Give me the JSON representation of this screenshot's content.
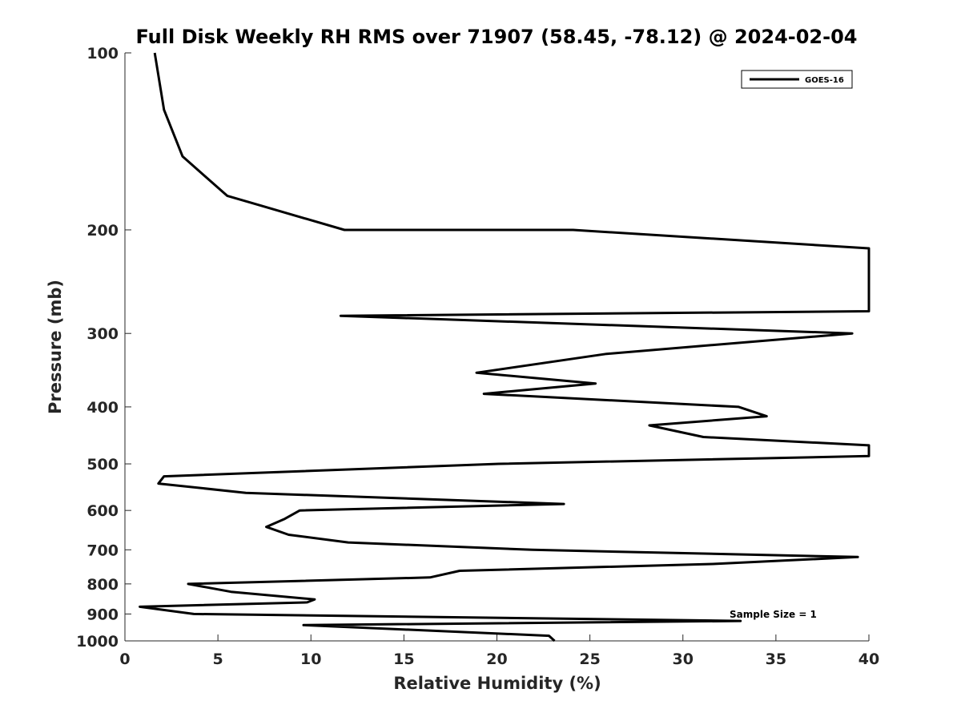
{
  "chart_data": {
    "type": "line",
    "title": "Full Disk Weekly RH RMS over 71907 (58.45, -78.12) @ 2024-02-04",
    "xlabel": "Relative Humidity (%)",
    "ylabel": "Pressure (mb)",
    "xlim": [
      0,
      40
    ],
    "ylim": [
      100,
      1000
    ],
    "y_scale": "log",
    "y_reversed": true,
    "grid": false,
    "x_ticks": [
      0,
      5,
      10,
      15,
      20,
      25,
      30,
      35,
      40
    ],
    "y_ticks": [
      100,
      200,
      300,
      400,
      500,
      600,
      700,
      800,
      900,
      1000
    ],
    "legend": {
      "position": "top-right",
      "entries": [
        "GOES-16"
      ]
    },
    "annotation": "Sample Size = 1",
    "series": [
      {
        "name": "GOES-16",
        "color": "#000000",
        "points": [
          [
            1.6,
            100
          ],
          [
            2.1,
            125
          ],
          [
            3.1,
            150
          ],
          [
            5.5,
            175
          ],
          [
            11.8,
            200
          ],
          [
            24.1,
            200
          ],
          [
            40.0,
            215
          ],
          [
            40.0,
            275
          ],
          [
            11.6,
            280
          ],
          [
            39.1,
            300
          ],
          [
            25.9,
            325
          ],
          [
            18.9,
            350
          ],
          [
            25.3,
            365
          ],
          [
            19.3,
            380
          ],
          [
            33.0,
            400
          ],
          [
            34.5,
            415
          ],
          [
            28.2,
            430
          ],
          [
            31.1,
            450
          ],
          [
            40.0,
            465
          ],
          [
            40.0,
            485
          ],
          [
            20.1,
            500
          ],
          [
            2.1,
            525
          ],
          [
            1.8,
            540
          ],
          [
            6.5,
            560
          ],
          [
            23.6,
            585
          ],
          [
            9.4,
            600
          ],
          [
            8.6,
            620
          ],
          [
            7.6,
            640
          ],
          [
            8.8,
            660
          ],
          [
            12.0,
            680
          ],
          [
            21.9,
            700
          ],
          [
            39.4,
            720
          ],
          [
            31.6,
            740
          ],
          [
            18.0,
            760
          ],
          [
            16.4,
            780
          ],
          [
            3.4,
            800
          ],
          [
            5.7,
            825
          ],
          [
            10.2,
            850
          ],
          [
            9.8,
            860
          ],
          [
            0.8,
            875
          ],
          [
            3.7,
            900
          ],
          [
            33.1,
            925
          ],
          [
            9.6,
            940
          ],
          [
            22.8,
            980
          ],
          [
            23.1,
            1000
          ]
        ]
      }
    ]
  }
}
